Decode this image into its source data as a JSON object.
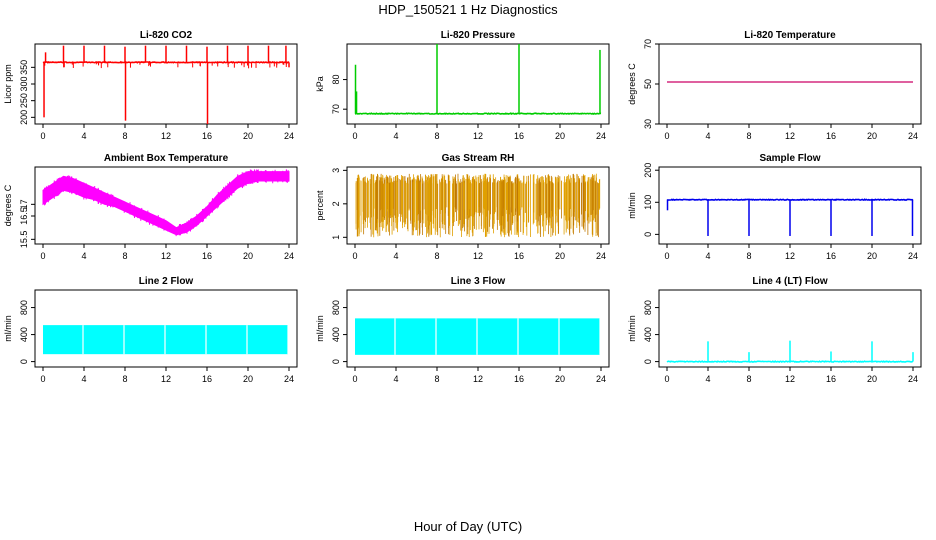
{
  "figure": {
    "title": "HDP_150521  1 Hz Diagnostics",
    "xlabel": "Hour of Day (UTC)"
  },
  "chart_data": [
    {
      "type": "line",
      "title": "Li-820 CO2",
      "ylabel": "Licor ppm",
      "color": "#ff0000",
      "xlim": [
        0,
        24
      ],
      "xticks": [
        0,
        4,
        8,
        12,
        16,
        20,
        24
      ],
      "ylim": [
        180,
        420
      ],
      "yticks": [
        200,
        250,
        300,
        350
      ],
      "series": [
        {
          "name": "CO2",
          "baseline": 365,
          "spikes": [
            [
              0.1,
              200
            ],
            [
              0.25,
              395
            ],
            [
              2,
              415
            ],
            [
              4,
              415
            ],
            [
              6,
              415
            ],
            [
              8,
              412
            ],
            [
              8.05,
              190
            ],
            [
              10,
              415
            ],
            [
              12,
              415
            ],
            [
              14,
              415
            ],
            [
              16,
              412
            ],
            [
              16.05,
              180
            ],
            [
              18,
              415
            ],
            [
              20,
              415
            ],
            [
              22,
              415
            ],
            [
              23.7,
              415
            ],
            [
              24,
              350
            ]
          ]
        }
      ]
    },
    {
      "type": "line",
      "title": "Li-820 Pressure",
      "ylabel": "kPa",
      "color": "#00cc00",
      "xlim": [
        0,
        24
      ],
      "xticks": [
        0,
        4,
        8,
        12,
        16,
        20,
        24
      ],
      "ylim": [
        65,
        92
      ],
      "yticks": [
        70,
        80
      ],
      "series": [
        {
          "name": "Pressure",
          "baseline": 68.5,
          "spikes": [
            [
              0.05,
              85
            ],
            [
              0.15,
              76
            ],
            [
              8,
              92
            ],
            [
              16,
              92
            ],
            [
              23.9,
              90
            ]
          ]
        }
      ]
    },
    {
      "type": "line",
      "title": "Li-820 Temperature",
      "ylabel": "degrees C",
      "color": "#cc0066",
      "xlim": [
        0,
        24
      ],
      "xticks": [
        0,
        4,
        8,
        12,
        16,
        20,
        24
      ],
      "ylim": [
        30,
        70
      ],
      "yticks": [
        30,
        50,
        70
      ],
      "series": [
        {
          "name": "Temperature",
          "x": [
            0,
            24
          ],
          "y": [
            51,
            51
          ]
        }
      ]
    },
    {
      "type": "area",
      "title": "Ambient Box Temperature",
      "ylabel": "degrees C",
      "color": "#ff00ff",
      "xlim": [
        0,
        24
      ],
      "xticks": [
        0,
        4,
        8,
        12,
        16,
        20,
        24
      ],
      "ylim": [
        15.3,
        18.6
      ],
      "yticks": [
        15.5,
        16.5,
        17.0
      ],
      "series": [
        {
          "name": "Box Temp",
          "x": [
            0,
            1,
            2,
            3,
            4,
            5,
            6,
            7,
            8,
            9,
            10,
            11,
            12,
            13,
            14,
            15,
            16,
            17,
            18,
            19,
            20,
            21,
            22,
            23,
            24
          ],
          "lo": [
            17.0,
            17.3,
            17.6,
            17.5,
            17.3,
            17.2,
            17.0,
            16.9,
            16.7,
            16.5,
            16.3,
            16.1,
            15.9,
            15.7,
            15.8,
            16.1,
            16.5,
            16.9,
            17.3,
            17.7,
            17.9,
            18.0,
            18.0,
            18.0,
            18.0
          ],
          "hi": [
            17.6,
            17.9,
            18.2,
            18.1,
            17.9,
            17.7,
            17.5,
            17.3,
            17.1,
            16.9,
            16.7,
            16.5,
            16.3,
            16.0,
            16.2,
            16.5,
            16.9,
            17.4,
            17.8,
            18.2,
            18.4,
            18.4,
            18.4,
            18.4,
            18.4
          ]
        }
      ]
    },
    {
      "type": "area",
      "title": "Gas Stream RH",
      "ylabel": "percent",
      "color": "#e0a000",
      "xlim": [
        0,
        24
      ],
      "xticks": [
        0,
        4,
        8,
        12,
        16,
        20,
        24
      ],
      "ylim": [
        0.8,
        3.1
      ],
      "yticks": [
        1.0,
        2.0,
        3.0
      ],
      "series": [
        {
          "name": "RH",
          "lo_range": [
            1.0,
            1.9
          ],
          "hi_range": [
            2.6,
            2.9
          ]
        }
      ]
    },
    {
      "type": "line",
      "title": "Sample Flow",
      "ylabel": "ml/min",
      "color": "#0000ee",
      "xlim": [
        0,
        24
      ],
      "xticks": [
        0,
        4,
        8,
        12,
        16,
        20,
        24
      ],
      "ylim": [
        -30,
        210
      ],
      "yticks": [
        0,
        100,
        200
      ],
      "series": [
        {
          "name": "Sample Flow",
          "baseline": 108,
          "spikes": [
            [
              0.05,
              75
            ],
            [
              4,
              -5
            ],
            [
              8,
              -5
            ],
            [
              12,
              -5
            ],
            [
              16,
              -5
            ],
            [
              20,
              -5
            ],
            [
              23.95,
              -5
            ]
          ]
        }
      ]
    },
    {
      "type": "area",
      "title": "Line 2 Flow",
      "ylabel": "ml/min",
      "color": "#00ffff",
      "xlim": [
        0,
        24
      ],
      "xticks": [
        0,
        4,
        8,
        12,
        16,
        20,
        24
      ],
      "ylim": [
        -80,
        1060
      ],
      "yticks": [
        0,
        400,
        800
      ],
      "series": [
        {
          "name": "Line 2",
          "lo": 110,
          "hi": 540,
          "gaps": [
            4,
            8,
            12,
            16,
            20,
            24
          ]
        }
      ]
    },
    {
      "type": "area",
      "title": "Line 3 Flow",
      "ylabel": "ml/min",
      "color": "#00ffff",
      "xlim": [
        0,
        24
      ],
      "xticks": [
        0,
        4,
        8,
        12,
        16,
        20,
        24
      ],
      "ylim": [
        -80,
        1060
      ],
      "yticks": [
        0,
        400,
        800
      ],
      "series": [
        {
          "name": "Line 3",
          "lo": 100,
          "hi": 640,
          "gaps": [
            4,
            8,
            12,
            16,
            20,
            24
          ]
        }
      ]
    },
    {
      "type": "line",
      "title": "Line 4 (LT) Flow",
      "ylabel": "ml/min",
      "color": "#00ffff",
      "xlim": [
        0,
        24
      ],
      "xticks": [
        0,
        4,
        8,
        12,
        16,
        20,
        24
      ],
      "ylim": [
        -80,
        1060
      ],
      "yticks": [
        0,
        400,
        800
      ],
      "series": [
        {
          "name": "Line 4",
          "baseline": 0,
          "spikes": [
            [
              4,
              300
            ],
            [
              8,
              140
            ],
            [
              12,
              310
            ],
            [
              16,
              150
            ],
            [
              20,
              300
            ],
            [
              24,
              140
            ]
          ]
        }
      ]
    }
  ]
}
